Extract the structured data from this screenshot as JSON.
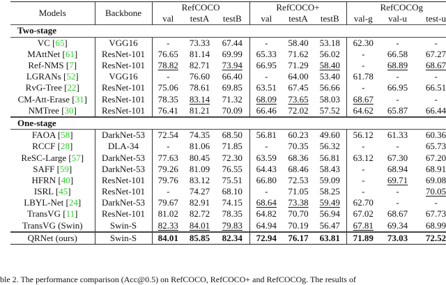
{
  "header": {
    "models": "Models",
    "backbone": "Backbone",
    "groups": [
      "RefCOCO",
      "RefCOCO+",
      "RefCOCOg"
    ],
    "subcolumns": [
      "val",
      "testA",
      "testB",
      "val",
      "testA",
      "testB",
      "val-g",
      "val-u",
      "test-u"
    ]
  },
  "sections": [
    {
      "title": "Two-stage",
      "rows": [
        {
          "model": "VC",
          "ref": "65",
          "backbone": "VGG16",
          "values": [
            "-",
            "73.33",
            "67.44",
            "-",
            "58.40",
            "53.18",
            "62.30",
            "-",
            "-"
          ],
          "underlined": []
        },
        {
          "model": "MAttNet",
          "ref": "61",
          "backbone": "ResNet-101",
          "values": [
            "76.65",
            "81.14",
            "69.99",
            "65.33",
            "71.62",
            "56.02",
            "-",
            "66.58",
            "67.27"
          ],
          "underlined": []
        },
        {
          "model": "Ref-NMS",
          "ref": "7",
          "backbone": "ResNet-101",
          "values": [
            "78.82",
            "82.71",
            "73.94",
            "66.95",
            "71.29",
            "58.40",
            "-",
            "68.89",
            "68.67"
          ],
          "underlined": [
            0,
            2,
            5,
            7,
            8
          ]
        },
        {
          "model": "LGRANs",
          "ref": "52",
          "backbone": "VGG16",
          "values": [
            "-",
            "76.60",
            "66.40",
            "-",
            "64.00",
            "53.40",
            "61.78",
            "-",
            "-"
          ],
          "underlined": []
        },
        {
          "model": "RvG-Tree",
          "ref": "22",
          "backbone": "ResNet-101",
          "values": [
            "75.06",
            "78.61",
            "69.85",
            "63.51",
            "67.45",
            "56.66",
            "-",
            "66.95",
            "66.51"
          ],
          "underlined": []
        },
        {
          "model": "CM-Att-Erase",
          "ref": "31",
          "backbone": "ResNet-101",
          "values": [
            "78.35",
            "83.14",
            "71.32",
            "68.09",
            "73.65",
            "58.03",
            "68.67",
            "-",
            "-"
          ],
          "underlined": [
            1,
            3,
            4,
            6
          ]
        },
        {
          "model": "NMTree",
          "ref": "30",
          "backbone": "ResNet-101",
          "values": [
            "76.41",
            "81.21",
            "70.09",
            "66.46",
            "72.02",
            "57.52",
            "64.62",
            "65.87",
            "66.44"
          ],
          "underlined": []
        }
      ]
    },
    {
      "title": "One-stage",
      "rows": [
        {
          "model": "FAOA",
          "ref": "58",
          "backbone": "DarkNet-53",
          "values": [
            "72.54",
            "74.35",
            "68.50",
            "56.81",
            "60.23",
            "49.60",
            "56.12",
            "61.33",
            "60.36"
          ],
          "underlined": []
        },
        {
          "model": "RCCF",
          "ref": "28",
          "backbone": "DLA-34",
          "values": [
            "-",
            "81.06",
            "71.85",
            "-",
            "70.35",
            "56.32",
            "-",
            "-",
            "65.73"
          ],
          "underlined": []
        },
        {
          "model": "ReSC-Large",
          "ref": "57",
          "backbone": "DarkNet-53",
          "values": [
            "77.63",
            "80.45",
            "72.30",
            "63.59",
            "68.36",
            "56.81",
            "63.12",
            "67.30",
            "67.20"
          ],
          "underlined": []
        },
        {
          "model": "SAFF",
          "ref": "59",
          "backbone": "DarkNet-53",
          "values": [
            "79.26",
            "81.09",
            "76.55",
            "64.43",
            "68.46",
            "58.43",
            "-",
            "68.94",
            "68.91"
          ],
          "underlined": []
        },
        {
          "model": "HFRN",
          "ref": "40",
          "backbone": "ResNet-101",
          "values": [
            "79.76",
            "83.12",
            "75.51",
            "66.80",
            "72.53",
            "59.09",
            "-",
            "69.71",
            "69.08"
          ],
          "underlined": [
            7
          ]
        },
        {
          "model": "ISRL",
          "ref": "45",
          "backbone": "ResNet-101",
          "values": [
            "-",
            "74.27",
            "68.10",
            "-",
            "71.05",
            "58.25",
            "-",
            "-",
            "70.05"
          ],
          "underlined": [
            8
          ]
        },
        {
          "model": "LBYL-Net",
          "ref": "24",
          "backbone": "DarkNet-53",
          "values": [
            "79.67",
            "82.91",
            "74.15",
            "68.64",
            "73.38",
            "59.49",
            "62.70",
            "-",
            "-"
          ],
          "underlined": [
            3,
            4,
            5
          ]
        },
        {
          "model": "TransVG",
          "ref": "11",
          "backbone": "ResNet-101",
          "values": [
            "81.02",
            "82.72",
            "78.35",
            "64.82",
            "70.70",
            "56.94",
            "67.02",
            "68.67",
            "67.73"
          ],
          "underlined": []
        },
        {
          "model": "TransVG (Swin)",
          "ref": "",
          "backbone": "Swin-S",
          "values": [
            "82.33",
            "84.01",
            "79.83",
            "64.94",
            "70.19",
            "56.47",
            "67.81",
            "69.34",
            "68.99"
          ],
          "underlined": [
            0,
            1,
            2,
            6
          ]
        }
      ]
    }
  ],
  "ours": {
    "model": "QRNet (ours)",
    "backbone": "Swin-S",
    "values": [
      "84.01",
      "85.85",
      "82.34",
      "72.94",
      "76.17",
      "63.81",
      "71.89",
      "73.03",
      "72.52"
    ]
  },
  "caption": "ble 2. The performance comparison (Acc@0.5) on RefCOCO, RefCOCO+ and RefCOCOg. The results of"
}
